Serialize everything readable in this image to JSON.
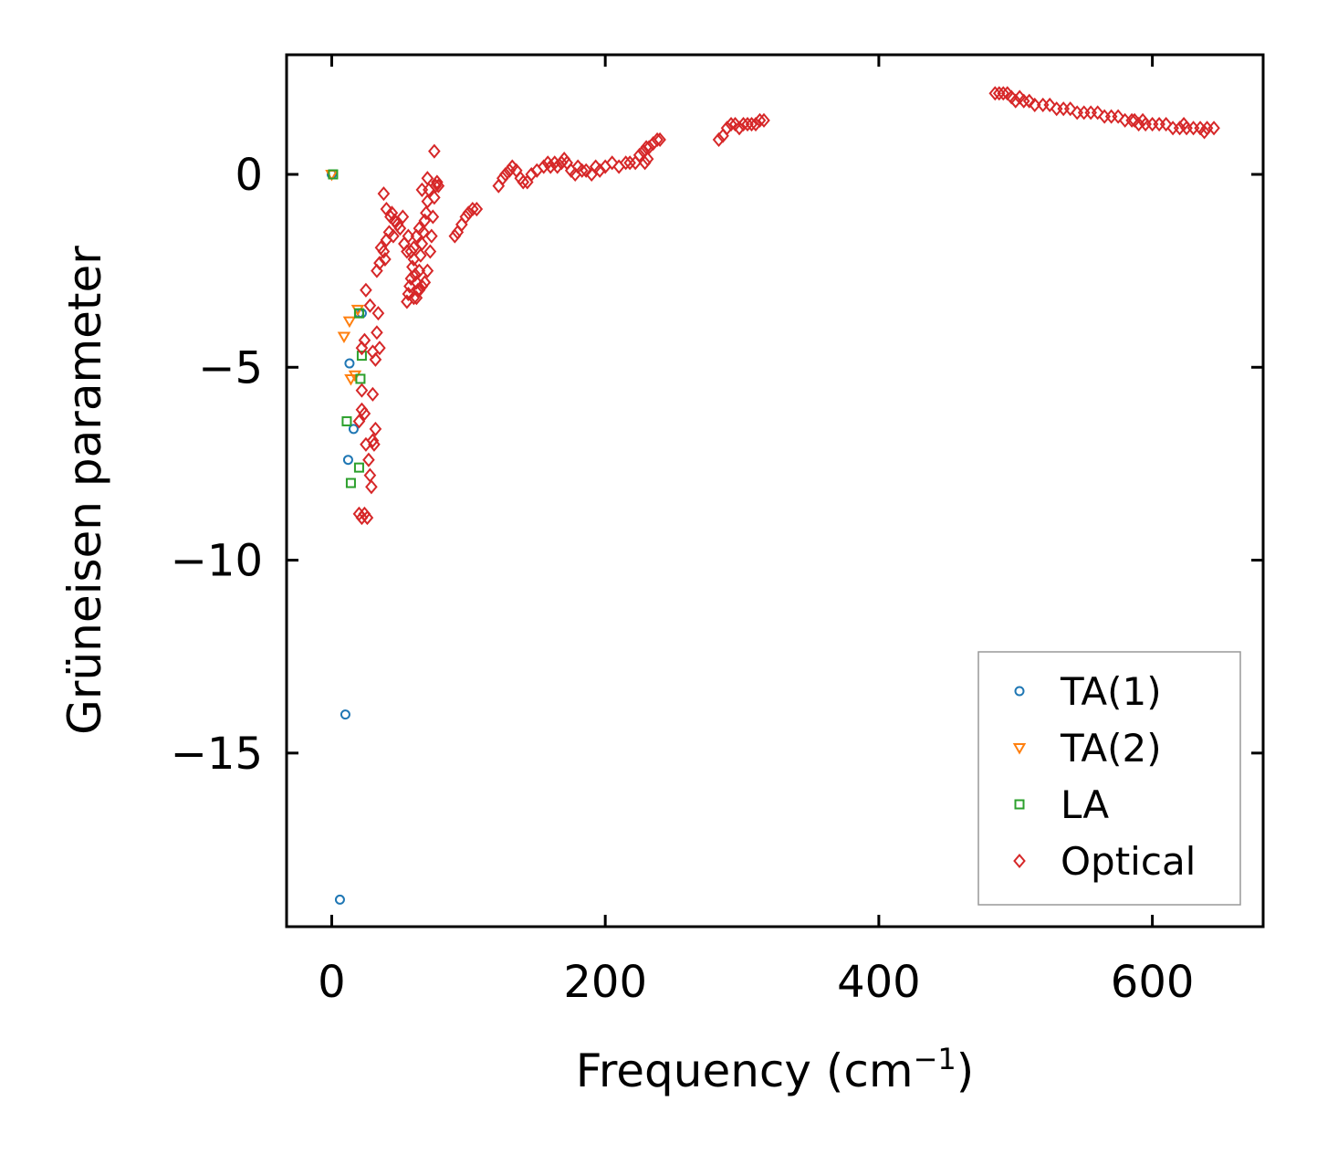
{
  "chart_data": {
    "type": "scatter",
    "title": "",
    "xlabel": "Frequency (cm",
    "xlabel_sup": "−1",
    "xlabel_suffix": ")",
    "ylabel": "Grüneisen parameter",
    "xlim": [
      -33,
      681
    ],
    "ylim": [
      -19.5,
      3.1
    ],
    "xticks": [
      0,
      200,
      400,
      600
    ],
    "xtick_labels": [
      "0",
      "200",
      "400",
      "600"
    ],
    "yticks": [
      0,
      -5,
      -10,
      -15
    ],
    "ytick_labels": [
      "0",
      "−5",
      "−10",
      "−15"
    ],
    "legend_position": "lower-right",
    "series": [
      {
        "name": "TA(1)",
        "marker": "circle",
        "color": "#1f77b4",
        "points": [
          [
            0,
            0
          ],
          [
            6,
            -18.8
          ],
          [
            10,
            -14.0
          ],
          [
            12,
            -7.4
          ],
          [
            13,
            -4.9
          ],
          [
            16,
            -6.6
          ],
          [
            20,
            -3.6
          ],
          [
            22,
            -3.6
          ]
        ]
      },
      {
        "name": "TA(2)",
        "marker": "triangle-down",
        "color": "#ff7f0e",
        "points": [
          [
            0,
            0
          ],
          [
            9,
            -4.2
          ],
          [
            13,
            -3.8
          ],
          [
            14,
            -5.3
          ],
          [
            17,
            -5.2
          ],
          [
            19,
            -3.5
          ]
        ]
      },
      {
        "name": "LA",
        "marker": "square",
        "color": "#2ca02c",
        "points": [
          [
            1,
            0
          ],
          [
            11,
            -6.4
          ],
          [
            14,
            -8.0
          ],
          [
            20,
            -7.6
          ],
          [
            21,
            -5.3
          ],
          [
            22,
            -4.7
          ],
          [
            20,
            -3.6
          ]
        ]
      },
      {
        "name": "Optical",
        "marker": "diamond",
        "color": "#d62728",
        "points": [
          [
            20,
            -8.8
          ],
          [
            22,
            -8.9
          ],
          [
            24,
            -8.8
          ],
          [
            26,
            -8.9
          ],
          [
            20,
            -6.4
          ],
          [
            22,
            -6.1
          ],
          [
            24,
            -6.2
          ],
          [
            22,
            -5.6
          ],
          [
            25,
            -7.0
          ],
          [
            27,
            -7.4
          ],
          [
            28,
            -7.8
          ],
          [
            29,
            -8.1
          ],
          [
            30,
            -6.9
          ],
          [
            31,
            -7.0
          ],
          [
            32,
            -6.6
          ],
          [
            30,
            -5.7
          ],
          [
            22,
            -4.5
          ],
          [
            24,
            -4.3
          ],
          [
            25,
            -3.0
          ],
          [
            28,
            -3.4
          ],
          [
            30,
            -4.6
          ],
          [
            32,
            -4.8
          ],
          [
            33,
            -4.1
          ],
          [
            34,
            -3.6
          ],
          [
            35,
            -4.5
          ],
          [
            33,
            -2.5
          ],
          [
            35,
            -2.3
          ],
          [
            36,
            -1.9
          ],
          [
            38,
            -2.0
          ],
          [
            39,
            -2.2
          ],
          [
            40,
            -1.7
          ],
          [
            42,
            -1.5
          ],
          [
            40,
            -0.9
          ],
          [
            43,
            -1.1
          ],
          [
            44,
            -1.0
          ],
          [
            45,
            -1.6
          ],
          [
            46,
            -1.2
          ],
          [
            48,
            -1.3
          ],
          [
            50,
            -1.4
          ],
          [
            52,
            -1.1
          ],
          [
            53,
            -1.8
          ],
          [
            55,
            -2.0
          ],
          [
            56,
            -1.6
          ],
          [
            38,
            -0.5
          ],
          [
            55,
            -3.3
          ],
          [
            56,
            -3.1
          ],
          [
            57,
            -2.9
          ],
          [
            58,
            -2.7
          ],
          [
            59,
            -2.4
          ],
          [
            60,
            -2.2
          ],
          [
            61,
            -2.6
          ],
          [
            62,
            -2.8
          ],
          [
            63,
            -3.0
          ],
          [
            64,
            -2.5
          ],
          [
            65,
            -2.1
          ],
          [
            66,
            -1.8
          ],
          [
            67,
            -1.5
          ],
          [
            68,
            -1.2
          ],
          [
            69,
            -1.0
          ],
          [
            70,
            -0.7
          ],
          [
            71,
            -0.4
          ],
          [
            70,
            -2.5
          ],
          [
            72,
            -2.0
          ],
          [
            73,
            -1.6
          ],
          [
            74,
            -1.1
          ],
          [
            75,
            -0.6
          ],
          [
            76,
            -0.3
          ],
          [
            77,
            -0.2
          ],
          [
            78,
            -0.3
          ],
          [
            70,
            -0.1
          ],
          [
            75,
            0.6
          ],
          [
            66,
            -0.4
          ],
          [
            60,
            -1.9
          ],
          [
            58,
            -2.0
          ],
          [
            62,
            -1.6
          ],
          [
            64,
            -1.4
          ],
          [
            68,
            -2.8
          ],
          [
            66,
            -2.9
          ],
          [
            64,
            -3.0
          ],
          [
            62,
            -3.2
          ],
          [
            60,
            -3.2
          ],
          [
            90,
            -1.6
          ],
          [
            92,
            -1.5
          ],
          [
            95,
            -1.3
          ],
          [
            98,
            -1.1
          ],
          [
            100,
            -1.0
          ],
          [
            103,
            -0.9
          ],
          [
            106,
            -0.9
          ],
          [
            122,
            -0.3
          ],
          [
            125,
            -0.1
          ],
          [
            127,
            0.0
          ],
          [
            130,
            0.1
          ],
          [
            132,
            0.2
          ],
          [
            135,
            0.1
          ],
          [
            138,
            -0.1
          ],
          [
            140,
            -0.2
          ],
          [
            143,
            -0.2
          ],
          [
            146,
            0.0
          ],
          [
            150,
            0.1
          ],
          [
            155,
            0.2
          ],
          [
            158,
            0.3
          ],
          [
            160,
            0.2
          ],
          [
            163,
            0.3
          ],
          [
            165,
            0.2
          ],
          [
            168,
            0.3
          ],
          [
            170,
            0.4
          ],
          [
            172,
            0.3
          ],
          [
            175,
            0.1
          ],
          [
            178,
            0.0
          ],
          [
            180,
            0.2
          ],
          [
            183,
            0.1
          ],
          [
            186,
            0.1
          ],
          [
            190,
            0.0
          ],
          [
            193,
            0.2
          ],
          [
            196,
            0.1
          ],
          [
            200,
            0.2
          ],
          [
            205,
            0.3
          ],
          [
            210,
            0.2
          ],
          [
            215,
            0.3
          ],
          [
            218,
            0.3
          ],
          [
            222,
            0.3
          ],
          [
            225,
            0.5
          ],
          [
            228,
            0.6
          ],
          [
            230,
            0.7
          ],
          [
            232,
            0.7
          ],
          [
            235,
            0.8
          ],
          [
            238,
            0.9
          ],
          [
            240,
            0.9
          ],
          [
            229,
            0.3
          ],
          [
            231,
            0.4
          ],
          [
            283,
            0.9
          ],
          [
            286,
            1.0
          ],
          [
            289,
            1.2
          ],
          [
            292,
            1.3
          ],
          [
            295,
            1.3
          ],
          [
            298,
            1.2
          ],
          [
            301,
            1.3
          ],
          [
            304,
            1.3
          ],
          [
            307,
            1.3
          ],
          [
            310,
            1.3
          ],
          [
            313,
            1.4
          ],
          [
            316,
            1.4
          ],
          [
            485,
            2.1
          ],
          [
            488,
            2.1
          ],
          [
            491,
            2.1
          ],
          [
            494,
            2.1
          ],
          [
            497,
            2.0
          ],
          [
            500,
            1.9
          ],
          [
            503,
            2.0
          ],
          [
            506,
            1.9
          ],
          [
            510,
            1.9
          ],
          [
            514,
            1.8
          ],
          [
            520,
            1.8
          ],
          [
            525,
            1.8
          ],
          [
            530,
            1.7
          ],
          [
            535,
            1.7
          ],
          [
            540,
            1.7
          ],
          [
            545,
            1.6
          ],
          [
            550,
            1.6
          ],
          [
            555,
            1.6
          ],
          [
            560,
            1.6
          ],
          [
            565,
            1.5
          ],
          [
            570,
            1.5
          ],
          [
            575,
            1.5
          ],
          [
            580,
            1.4
          ],
          [
            585,
            1.4
          ],
          [
            590,
            1.3
          ],
          [
            595,
            1.3
          ],
          [
            600,
            1.3
          ],
          [
            605,
            1.3
          ],
          [
            610,
            1.3
          ],
          [
            615,
            1.2
          ],
          [
            620,
            1.2
          ],
          [
            625,
            1.2
          ],
          [
            630,
            1.2
          ],
          [
            635,
            1.2
          ],
          [
            640,
            1.2
          ],
          [
            645,
            1.2
          ],
          [
            587,
            1.4
          ],
          [
            593,
            1.4
          ],
          [
            623,
            1.3
          ],
          [
            638,
            1.1
          ]
        ]
      }
    ]
  }
}
